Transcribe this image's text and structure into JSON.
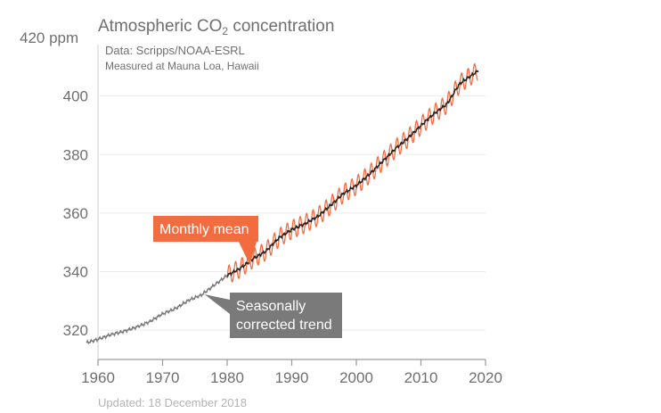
{
  "chart_data": {
    "type": "line",
    "title": "Atmospheric CO",
    "title_subscript": "2",
    "title_suffix": " concentration",
    "source_line1": "Data: Scripps/NOAA-ESRL",
    "source_line2": "Measured at Mauna Loa, Hawaii",
    "footer": "Updated: 18 December 2018",
    "ylabel_unit": "ppm",
    "xlabel": "",
    "xlim": [
      1960,
      2020
    ],
    "ylim": [
      310,
      420
    ],
    "x_ticks": [
      1960,
      1970,
      1980,
      1990,
      2000,
      2010,
      2020
    ],
    "y_ticks": [
      320,
      340,
      360,
      380,
      400,
      420
    ],
    "y_tick_labels": [
      "320",
      "340",
      "360",
      "380",
      "400",
      "420 ppm"
    ],
    "grid": true,
    "series": [
      {
        "name": "Seasonally corrected trend",
        "color": "#222222",
        "early_color": "#7a7a7a",
        "x": [
          1958.2,
          1960,
          1962,
          1964,
          1966,
          1968,
          1970,
          1972,
          1974,
          1976,
          1978,
          1980,
          1982,
          1984,
          1986,
          1988,
          1990,
          1992,
          1994,
          1996,
          1998,
          2000,
          2002,
          2004,
          2006,
          2008,
          2010,
          2012,
          2014,
          2016,
          2018.9
        ],
        "values": [
          315.7,
          316.9,
          318.5,
          319.6,
          321.1,
          322.9,
          325.6,
          327.4,
          330.2,
          332.0,
          335.4,
          338.7,
          341.1,
          344.4,
          347.0,
          351.5,
          354.4,
          356.3,
          358.8,
          362.6,
          366.7,
          369.4,
          373.2,
          377.5,
          381.9,
          385.6,
          389.9,
          393.9,
          397.2,
          404.2,
          408.7
        ]
      },
      {
        "name": "Monthly mean",
        "color": "#f26c3f",
        "x_start": 1980,
        "x_end": 2018.9,
        "seasonal_amplitude": 3.2
      }
    ],
    "annotations": [
      {
        "label": "Monthly mean",
        "color": "#f26c3f",
        "text_color": "#ffffff",
        "points_to_year": 1983.5
      },
      {
        "label_line1": "Seasonally",
        "label_line2": "corrected trend",
        "color": "#7a7a7a",
        "text_color": "#ffffff",
        "points_to_year": 1976.5
      }
    ]
  }
}
